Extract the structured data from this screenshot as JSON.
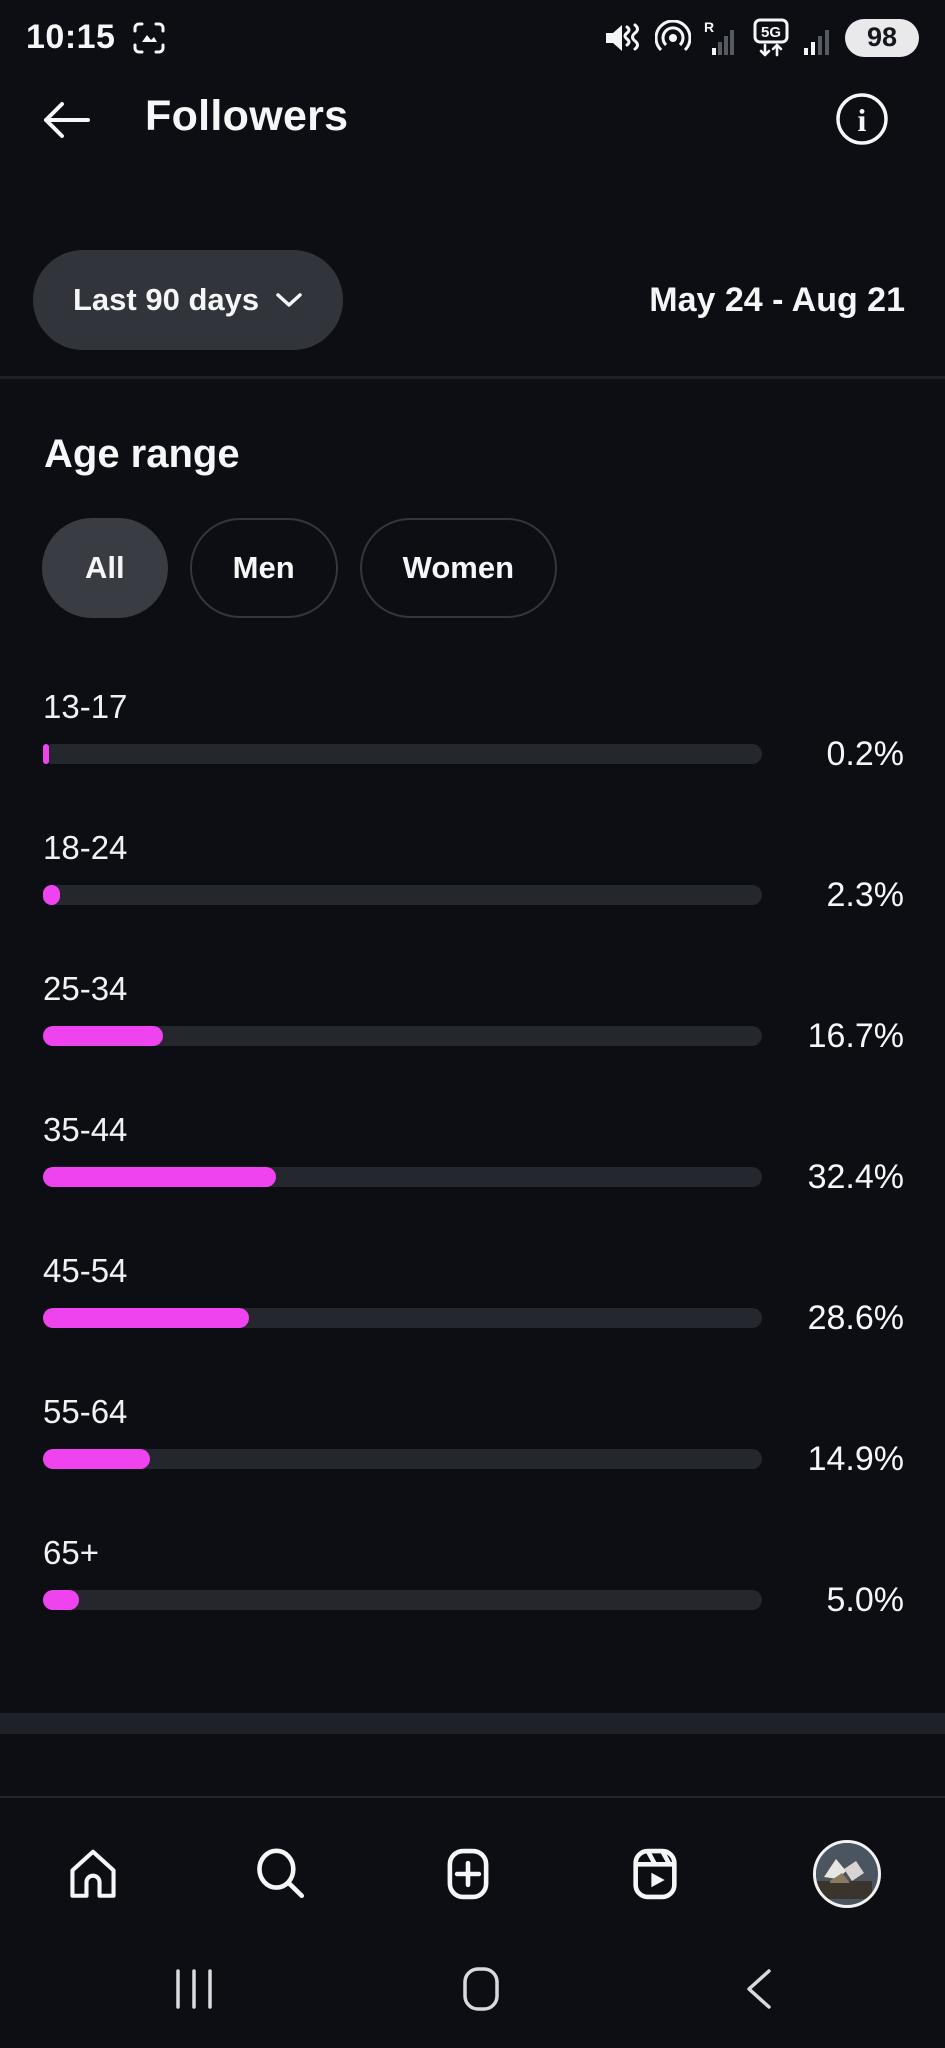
{
  "status_bar": {
    "time": "10:15",
    "roaming": "R",
    "network": "5G",
    "battery_level": "98",
    "icons": [
      "screen-capture",
      "vibrate-mute",
      "hotspot",
      "sim1-signal-roaming",
      "5g-data-arrows",
      "sim2-signal",
      "battery"
    ]
  },
  "header": {
    "title": "Followers",
    "icons": [
      "back-arrow",
      "info-circle"
    ]
  },
  "filters": {
    "period": "Last 90 days",
    "date_range": "May 24 - Aug 21"
  },
  "section": {
    "title": "Age range",
    "tabs": [
      {
        "label": "All",
        "selected": true
      },
      {
        "label": "Men",
        "selected": false
      },
      {
        "label": "Women",
        "selected": false
      }
    ]
  },
  "chart_data": {
    "type": "bar",
    "orientation": "horizontal",
    "title": "Age range",
    "categories": [
      "13-17",
      "18-24",
      "25-34",
      "35-44",
      "45-54",
      "55-64",
      "65+"
    ],
    "values": [
      0.2,
      2.3,
      16.7,
      32.4,
      28.6,
      14.9,
      5.0
    ],
    "value_labels": [
      "0.2%",
      "2.3%",
      "16.7%",
      "32.4%",
      "28.6%",
      "14.9%",
      "5.0%"
    ],
    "xlim": [
      0,
      100
    ],
    "grid": false,
    "legend": false,
    "bar_color": "#ef43f0",
    "track_color": "#25272e"
  },
  "tab_bar": {
    "items": [
      {
        "name": "home"
      },
      {
        "name": "search"
      },
      {
        "name": "create"
      },
      {
        "name": "reels"
      },
      {
        "name": "profile"
      }
    ]
  },
  "nav_bar": {
    "items": [
      {
        "name": "recents"
      },
      {
        "name": "home"
      },
      {
        "name": "back"
      }
    ]
  },
  "colors": {
    "background": "#0c0e13",
    "accent": "#ef43f0",
    "surface": "#31343a",
    "track": "#25272e",
    "text": "#f5f6f7"
  }
}
